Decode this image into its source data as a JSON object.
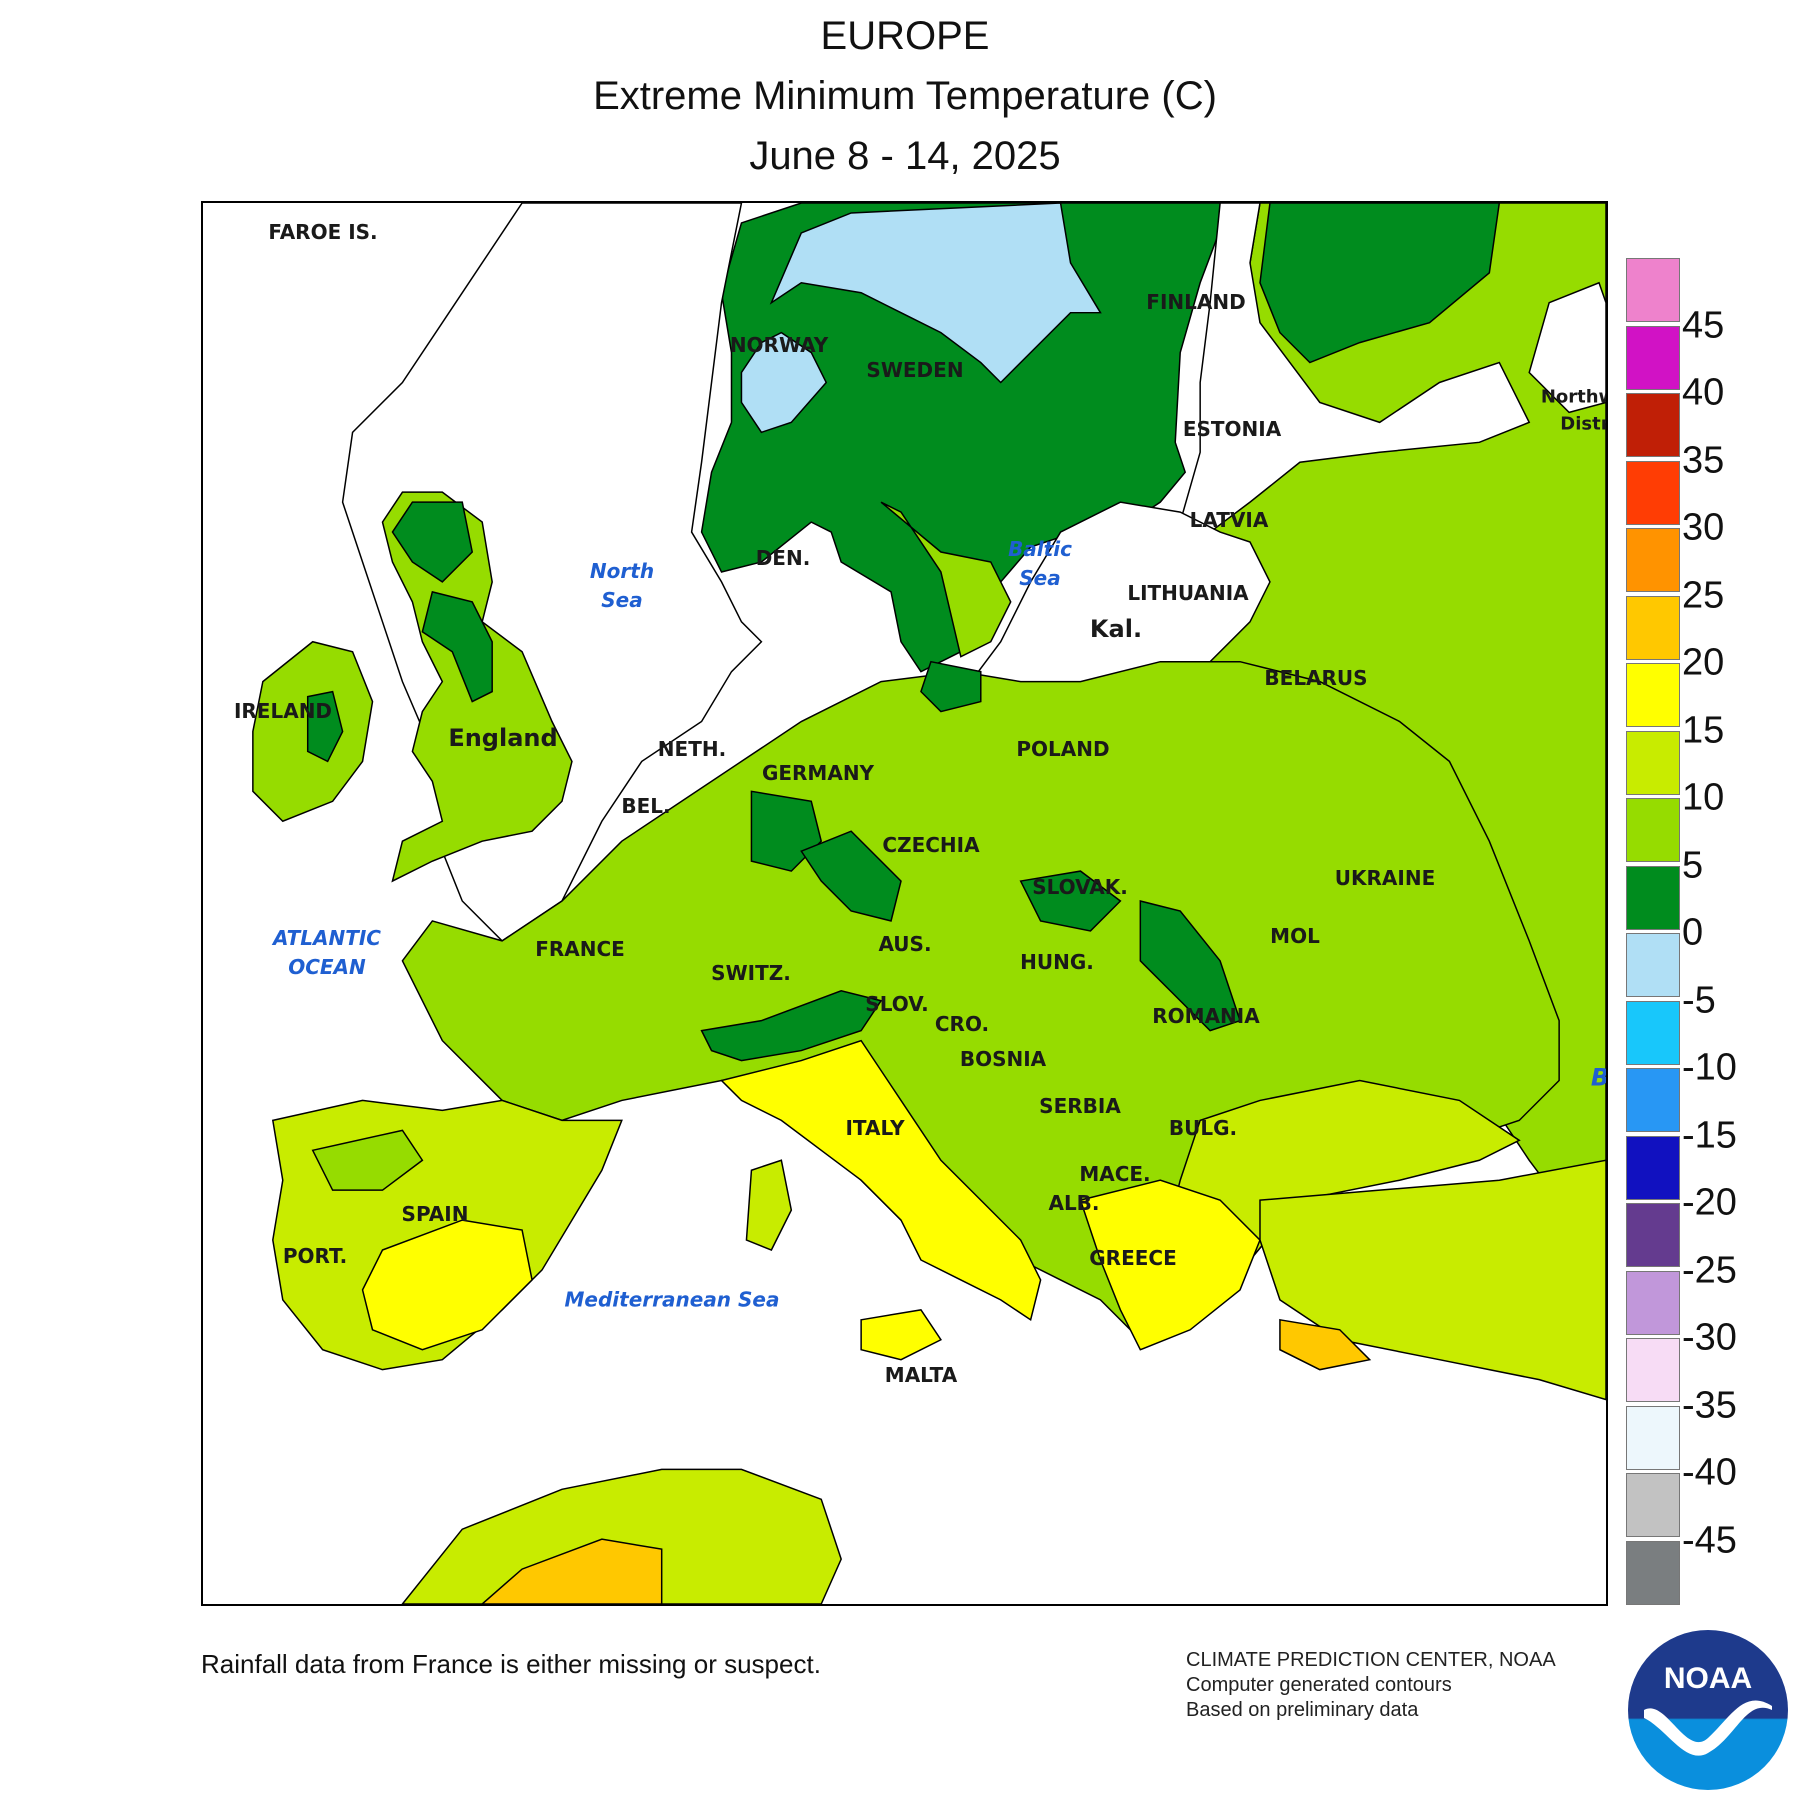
{
  "title": {
    "region": "EUROPE",
    "variable": "Extreme Minimum Temperature (C)",
    "period": "June 8 - 14, 2025"
  },
  "map": {
    "country_labels": [
      {
        "id": "faroe",
        "text": "FAROE IS."
      },
      {
        "id": "norway",
        "text": "NORWAY"
      },
      {
        "id": "sweden",
        "text": "SWEDEN"
      },
      {
        "id": "finland",
        "text": "FINLAND"
      },
      {
        "id": "estonia",
        "text": "ESTONIA"
      },
      {
        "id": "latvia",
        "text": "LATVIA"
      },
      {
        "id": "lithuania",
        "text": "LITHUANIA"
      },
      {
        "id": "kal",
        "text": "Kal."
      },
      {
        "id": "belarus",
        "text": "BELARUS"
      },
      {
        "id": "ireland",
        "text": "IRELAND"
      },
      {
        "id": "england",
        "text": "England"
      },
      {
        "id": "denmark",
        "text": "DEN."
      },
      {
        "id": "netherlands",
        "text": "NETH."
      },
      {
        "id": "belgium",
        "text": "BEL."
      },
      {
        "id": "germany",
        "text": "GERMANY"
      },
      {
        "id": "poland",
        "text": "POLAND"
      },
      {
        "id": "czechia",
        "text": "CZECHIA"
      },
      {
        "id": "slovakia",
        "text": "SLOVAK."
      },
      {
        "id": "ukraine",
        "text": "UKRAINE"
      },
      {
        "id": "moldova",
        "text": "MOL"
      },
      {
        "id": "france",
        "text": "FRANCE"
      },
      {
        "id": "switzerland",
        "text": "SWITZ."
      },
      {
        "id": "austria",
        "text": "AUS."
      },
      {
        "id": "hungary",
        "text": "HUNG."
      },
      {
        "id": "romania",
        "text": "ROMANIA"
      },
      {
        "id": "slovenia",
        "text": "SLOV."
      },
      {
        "id": "croatia",
        "text": "CRO."
      },
      {
        "id": "bosnia",
        "text": "BOSNIA"
      },
      {
        "id": "serbia",
        "text": "SERBIA"
      },
      {
        "id": "bulgaria",
        "text": "BULG."
      },
      {
        "id": "macedonia",
        "text": "MACE."
      },
      {
        "id": "albania",
        "text": "ALB."
      },
      {
        "id": "greece",
        "text": "GREECE"
      },
      {
        "id": "italy",
        "text": "ITALY"
      },
      {
        "id": "spain",
        "text": "SPAIN"
      },
      {
        "id": "portugal",
        "text": "PORT."
      },
      {
        "id": "malta",
        "text": "MALTA"
      },
      {
        "id": "northwest",
        "text": "Northw"
      },
      {
        "id": "district",
        "text": "Distri"
      }
    ],
    "sea_labels": [
      {
        "id": "north-sea",
        "text": "North\nSea"
      },
      {
        "id": "baltic-sea",
        "text": "Baltic\nSea"
      },
      {
        "id": "atlantic",
        "text": "ATLANTIC\nOCEAN"
      },
      {
        "id": "mediterranean",
        "text": "Mediterranean Sea"
      },
      {
        "id": "black-sea",
        "text": "B"
      }
    ],
    "fill_colors": {
      "sea": "#ffffff",
      "band_m5_0": "#b0dff5",
      "band_0_5": "#008c1e",
      "band_5_10": "#96dc00",
      "band_10_15": "#c8ec00",
      "band_15_20": "#ffff00",
      "band_20_25": "#ffc800",
      "contour": "#000000"
    }
  },
  "legend": {
    "swatches": [
      {
        "color": "#ee82cc"
      },
      {
        "color": "#d112c5"
      },
      {
        "color": "#c01f06"
      },
      {
        "color": "#ff3d04"
      },
      {
        "color": "#ff9300"
      },
      {
        "color": "#ffc800"
      },
      {
        "color": "#ffff00"
      },
      {
        "color": "#c8ec00"
      },
      {
        "color": "#96dc00"
      },
      {
        "color": "#008c1e"
      },
      {
        "color": "#b0dff5"
      },
      {
        "color": "#18c7fb"
      },
      {
        "color": "#2897f4"
      },
      {
        "color": "#1111c0"
      },
      {
        "color": "#643b8f"
      },
      {
        "color": "#c197da"
      },
      {
        "color": "#f7dcf5"
      },
      {
        "color": "#edf7fc"
      },
      {
        "color": "#c2c2c2"
      },
      {
        "color": "#7a7e80"
      }
    ],
    "ticks": [
      "45",
      "40",
      "35",
      "30",
      "25",
      "20",
      "15",
      "10",
      "5",
      "0",
      "-5",
      "-10",
      "-15",
      "-20",
      "-25",
      "-30",
      "-35",
      "-40",
      "-45"
    ]
  },
  "footer": {
    "note": "Rainfall data from France is either missing or suspect.",
    "credit_org": "CLIMATE PREDICTION CENTER, NOAA",
    "credit_method": "Computer generated contours",
    "credit_basis": "Based on preliminary data",
    "logo_text": "NOAA"
  }
}
